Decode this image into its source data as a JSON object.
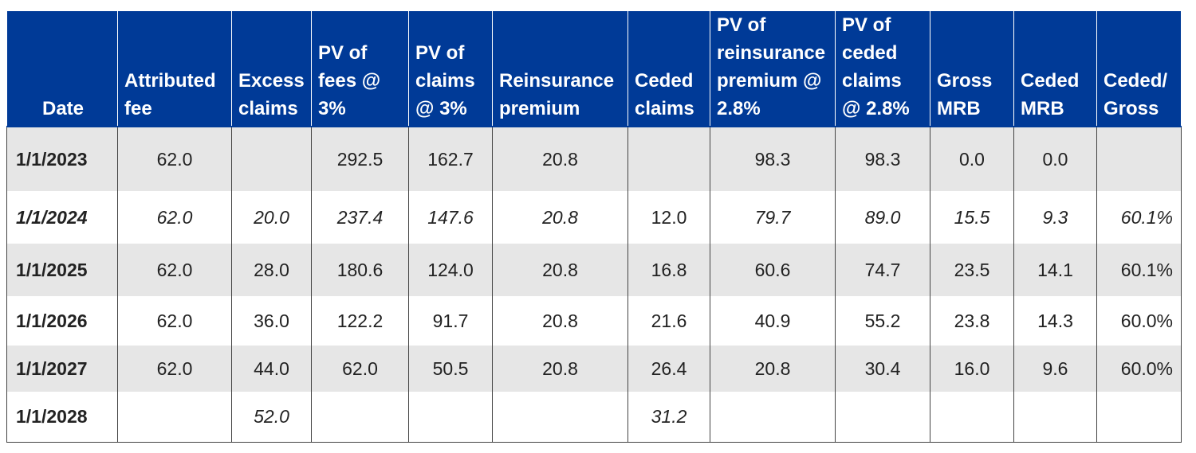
{
  "table": {
    "headers": [
      "Date",
      "Attributed fee",
      "Excess claims",
      "PV of fees @ 3%",
      "PV of claims @ 3%",
      "Reinsurance premium",
      "Ceded claims",
      "PV of reinsurance premium @ 2.8%",
      "PV of ceded claims @ 2.8%",
      "Gross MRB",
      "Ceded MRB",
      "Ceded/ Gross"
    ],
    "rows": [
      [
        "1/1/2023",
        "62.0",
        "",
        "292.5",
        "162.7",
        "20.8",
        "",
        "98.3",
        "98.3",
        "0.0",
        "0.0",
        ""
      ],
      [
        "1/1/2024",
        "62.0",
        "20.0",
        "237.4",
        "147.6",
        "20.8",
        "12.0",
        "79.7",
        "89.0",
        "15.5",
        "9.3",
        "60.1%"
      ],
      [
        "1/1/2025",
        "62.0",
        "28.0",
        "180.6",
        "124.0",
        "20.8",
        "16.8",
        "60.6",
        "74.7",
        "23.5",
        "14.1",
        "60.1%"
      ],
      [
        "1/1/2026",
        "62.0",
        "36.0",
        "122.2",
        "91.7",
        "20.8",
        "21.6",
        "40.9",
        "55.2",
        "23.8",
        "14.3",
        "60.0%"
      ],
      [
        "1/1/2027",
        "62.0",
        "44.0",
        "62.0",
        "50.5",
        "20.8",
        "26.4",
        "20.8",
        "30.4",
        "16.0",
        "9.6",
        "60.0%"
      ],
      [
        "1/1/2028",
        "",
        "52.0",
        "",
        "",
        "",
        "31.2",
        "",
        "",
        "",
        "",
        ""
      ]
    ]
  },
  "colors": {
    "header_bg": "#003a97",
    "header_text": "#ffffff",
    "stripe": "#e6e6e6"
  }
}
